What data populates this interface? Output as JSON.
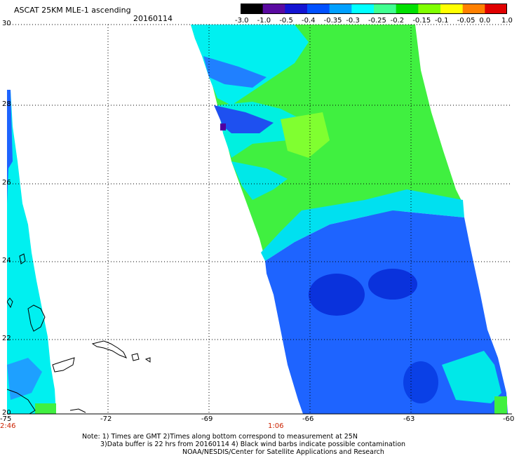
{
  "header": {
    "title": "ASCAT 25KM MLE-1 ascending",
    "date": "20160114"
  },
  "colorbar": {
    "ticks": [
      "-3.0",
      "-1.0",
      "-0.5",
      "-0.4",
      "-0.35",
      "-0.3",
      "-0.25",
      "-0.2",
      "-0.15",
      "-0.1",
      "-0.05",
      "0.0",
      "1.0"
    ],
    "colors": [
      "#000000",
      "#5a0aa0",
      "#1414d2",
      "#0050ff",
      "#00a0ff",
      "#00ffff",
      "#40ff90",
      "#00e000",
      "#80ff00",
      "#ffff00",
      "#ff8000",
      "#e00000"
    ]
  },
  "axes": {
    "lat_labels": [
      "30",
      "28",
      "26",
      "24",
      "22",
      "20"
    ],
    "lon_labels": [
      "-75",
      "-72",
      "-69",
      "-66",
      "-63",
      "-60"
    ],
    "lon_range": [
      -75,
      -60
    ],
    "lat_range": [
      20,
      30
    ]
  },
  "time_labels": [
    "2:46",
    "1:06"
  ],
  "notes": {
    "line1": "Note: 1) Times are GMT 2)Times along bottom correspond to measurement at 25N",
    "line2": "3)Data buffer is 22 hrs from 20160114 4) Black wind barbs indicate possible contamination",
    "line3": "NOAA/NESDIS/Center for Satellite Applications and Research"
  },
  "colors": {
    "time_label": "#cc2200",
    "grid": "#000000",
    "swath_cyan": "#00f0f0",
    "swath_green": "#40ff40",
    "swath_blue": "#1e64ff",
    "swath_deep_blue": "#0a28dc",
    "swath_purple": "#5000a0"
  }
}
